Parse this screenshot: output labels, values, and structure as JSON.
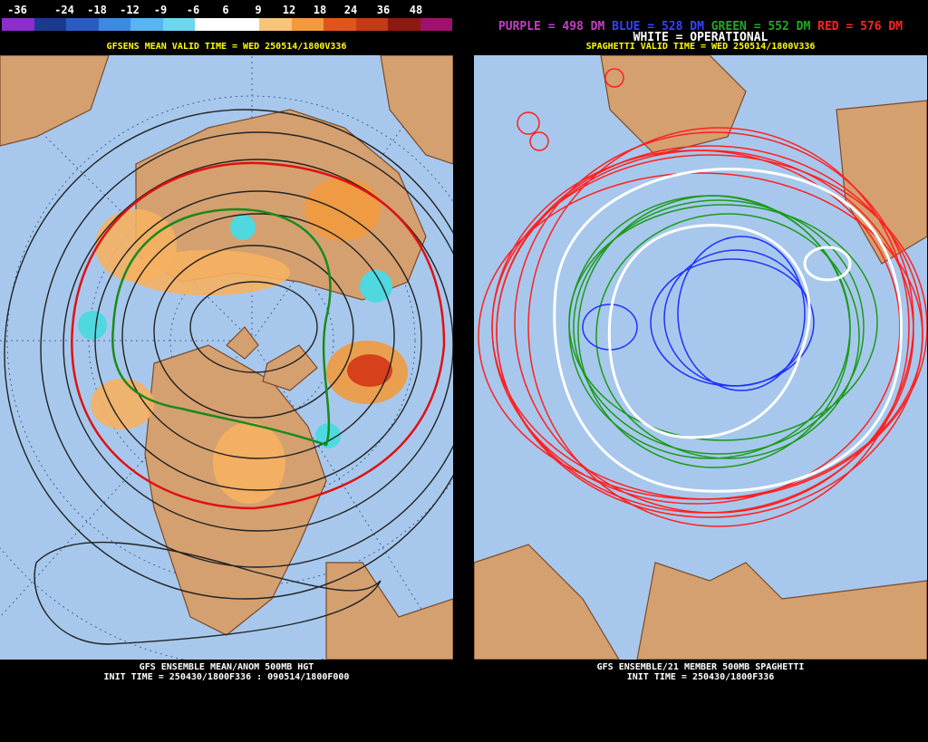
{
  "left": {
    "legend_ticks": [
      "-36",
      "-24",
      "-18",
      "-12",
      "-9",
      "-6",
      "6",
      "9",
      "12",
      "18",
      "24",
      "36",
      "48"
    ],
    "legend_colors": [
      "#8c2dcc",
      "#1a3b8c",
      "#2a5dc0",
      "#3d8ae0",
      "#5ab4ef",
      "#6fd6ef",
      "#ffffff",
      "#ffffff",
      "#f7c47a",
      "#f19a3e",
      "#e0541b",
      "#c23a16",
      "#8c1a10",
      "#a0106e"
    ],
    "valid_time": "GFSENS MEAN VALID TIME = WED 250514/1800V336",
    "footer_line1": "GFS ENSEMBLE MEAN/ANOM 500MB HGT",
    "footer_line2": "INIT TIME = 250430/1800F336 : 090514/1800F000"
  },
  "right": {
    "legend": [
      {
        "label": "PURPLE = 498 DM",
        "color": "#c040c0"
      },
      {
        "label": "BLUE = 528 DM",
        "color": "#3344ff"
      },
      {
        "label": "GREEN = 552 DM",
        "color": "#22aa22"
      },
      {
        "label": "RED = 576 DM",
        "color": "#ff2222"
      }
    ],
    "operational": "WHITE = OPERATIONAL",
    "valid_time": "SPAGHETTI VALID TIME = WED 250514/1800V336",
    "footer_line1": "GFS ENSEMBLE/21 MEMBER 500MB SPAGHETTI",
    "footer_line2": "INIT TIME = 250430/1800F336"
  },
  "colors": {
    "ocean": "#a7c8ec",
    "land": "#d4a070",
    "country_border": "#7a4a2a",
    "contour": "#222222"
  }
}
